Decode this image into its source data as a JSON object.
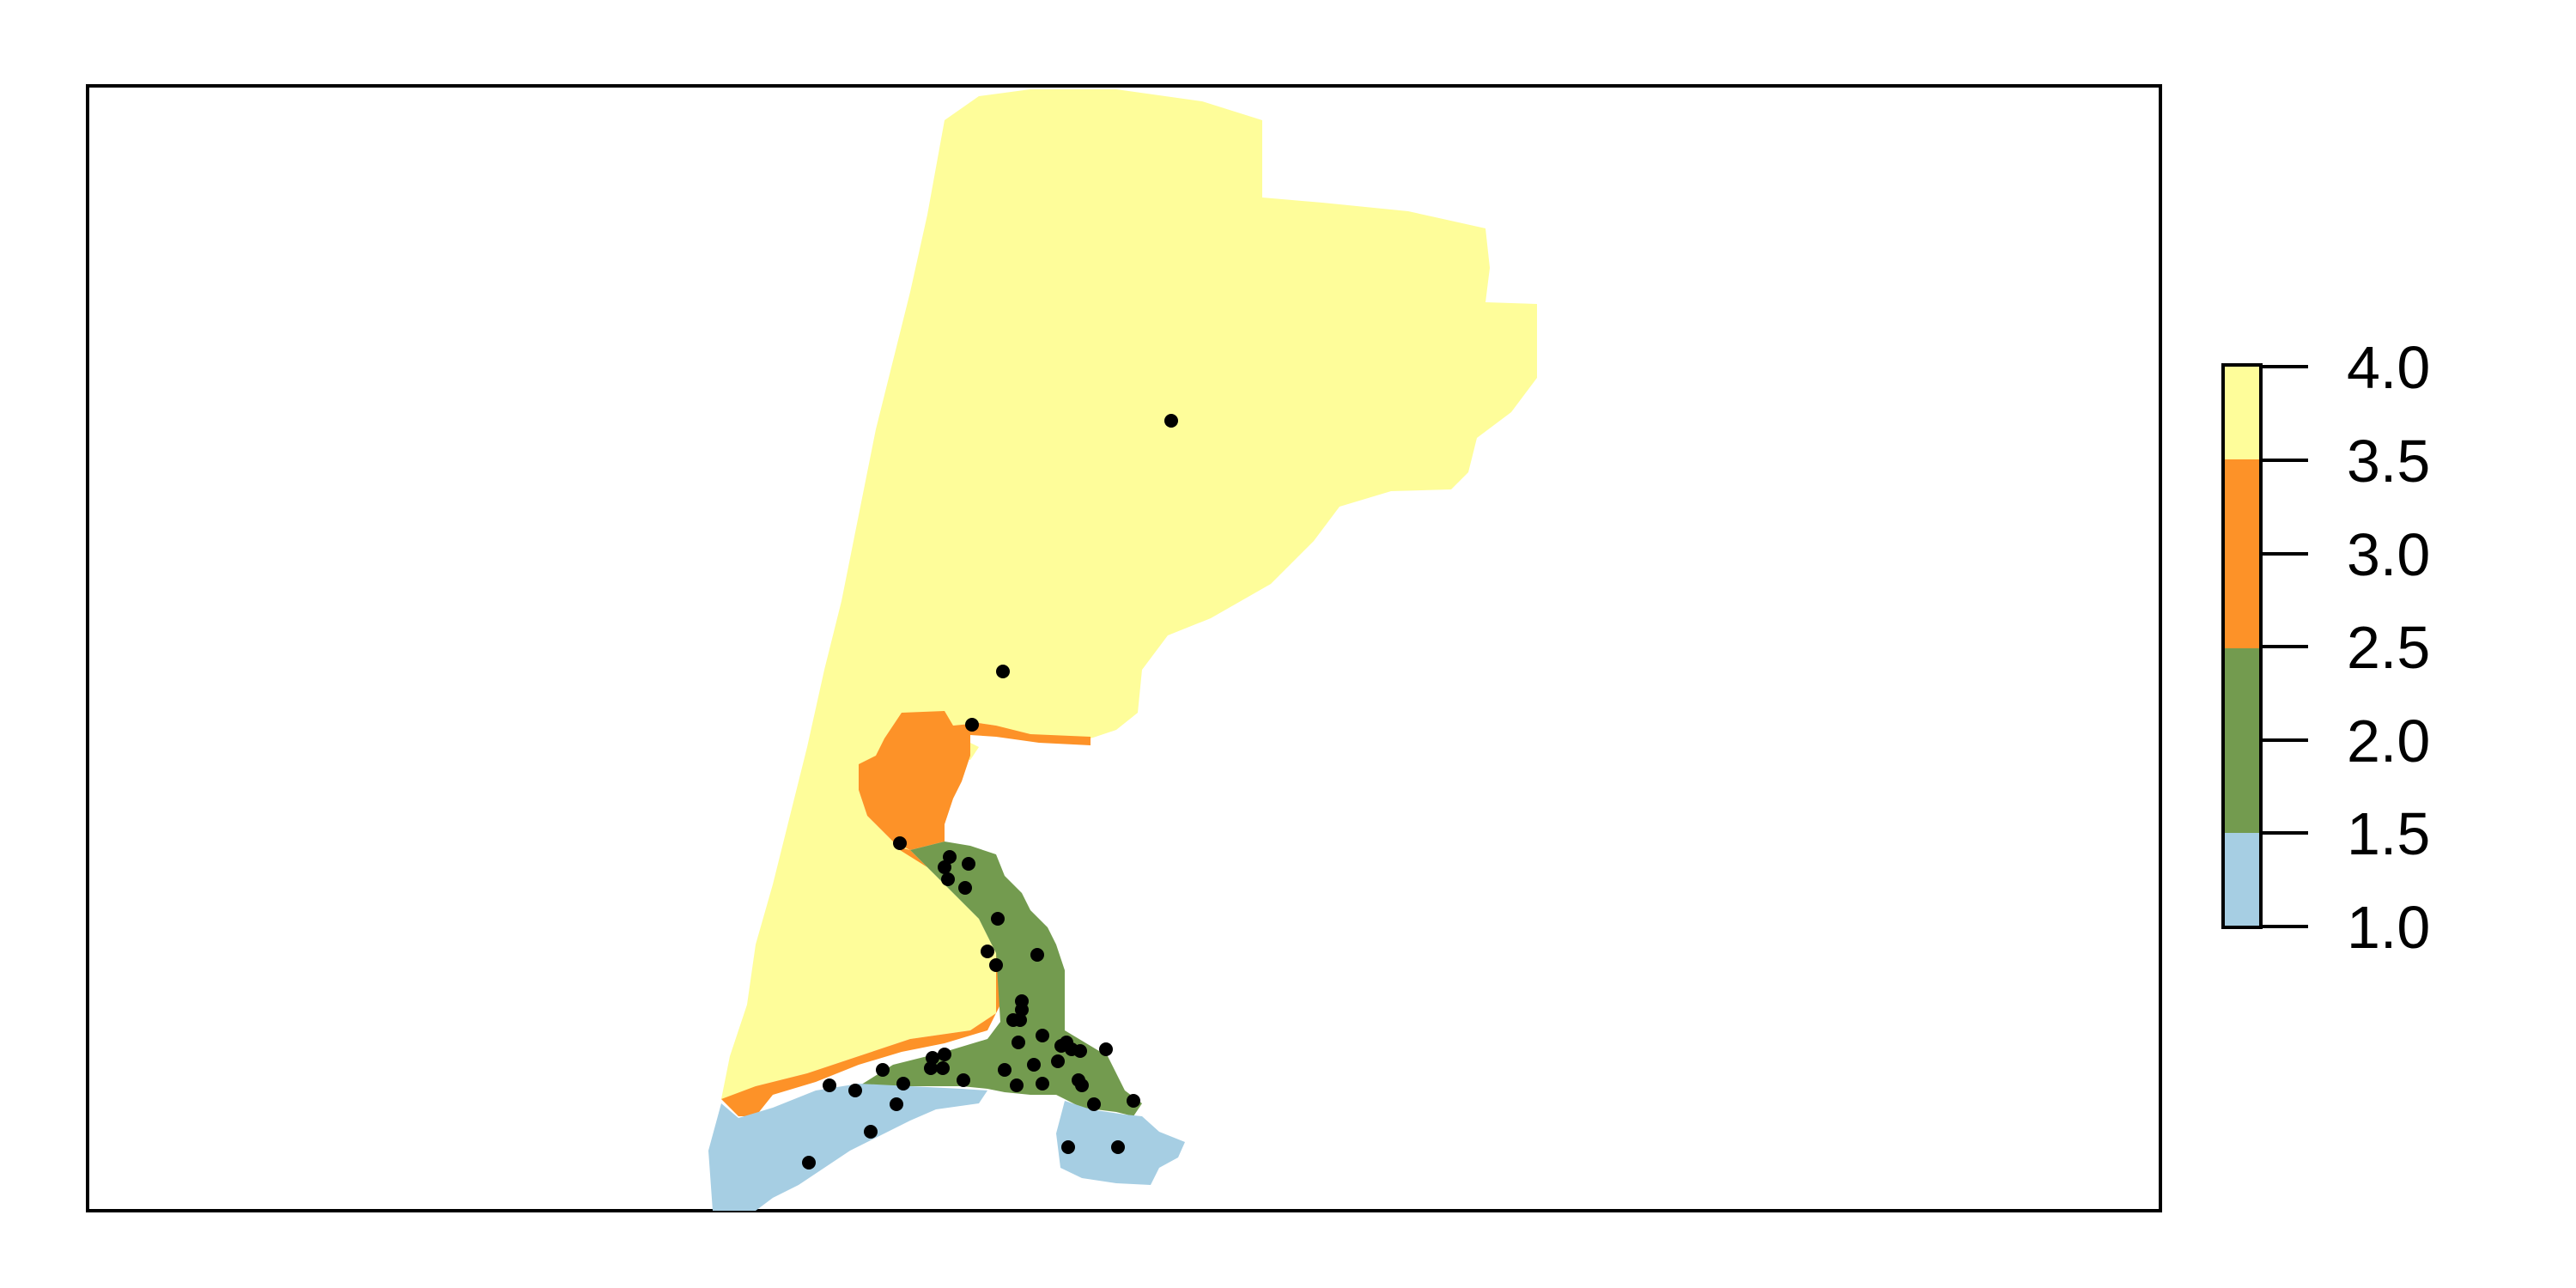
{
  "map": {
    "type": "raster-classification",
    "classes": [
      {
        "value": 1,
        "color": "#a6cee3"
      },
      {
        "value": 2,
        "color": "#739b4f"
      },
      {
        "value": 3,
        "color": "#fd9228"
      },
      {
        "value": 4,
        "color": "#fefd9a"
      }
    ],
    "occurrence_points_count": 47
  },
  "legend": {
    "range": [
      1.0,
      4.0
    ],
    "tick_labels": [
      "4.0",
      "3.5",
      "3.0",
      "2.5",
      "2.0",
      "1.5",
      "1.0"
    ],
    "colors": [
      "#fefd9a",
      "#fd9228",
      "#739b4f",
      "#a6cee3"
    ]
  }
}
